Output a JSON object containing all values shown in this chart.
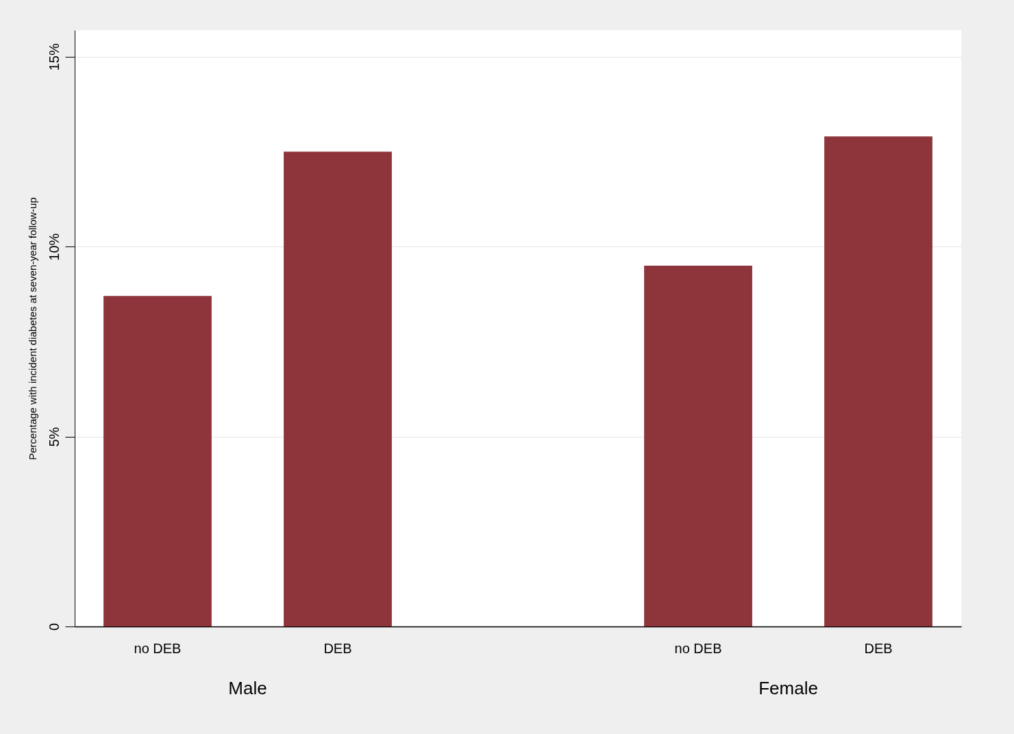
{
  "chart_data": {
    "type": "bar",
    "ylabel": "Percentage with incident diabetes at seven-year follow-up",
    "categories": [
      "no DEB",
      "DEB",
      "no DEB",
      "DEB"
    ],
    "values": [
      8.7,
      12.5,
      9.5,
      12.9
    ],
    "color": "#8e353b",
    "annotations": [
      "Male",
      "Female"
    ],
    "ylim": [
      0,
      15.7
    ],
    "yticks": [
      {
        "value": 0,
        "label": "0"
      },
      {
        "value": 5,
        "label": "5%"
      },
      {
        "value": 10,
        "label": "10%"
      },
      {
        "value": 15,
        "label": "15%"
      }
    ],
    "grid": "y"
  }
}
